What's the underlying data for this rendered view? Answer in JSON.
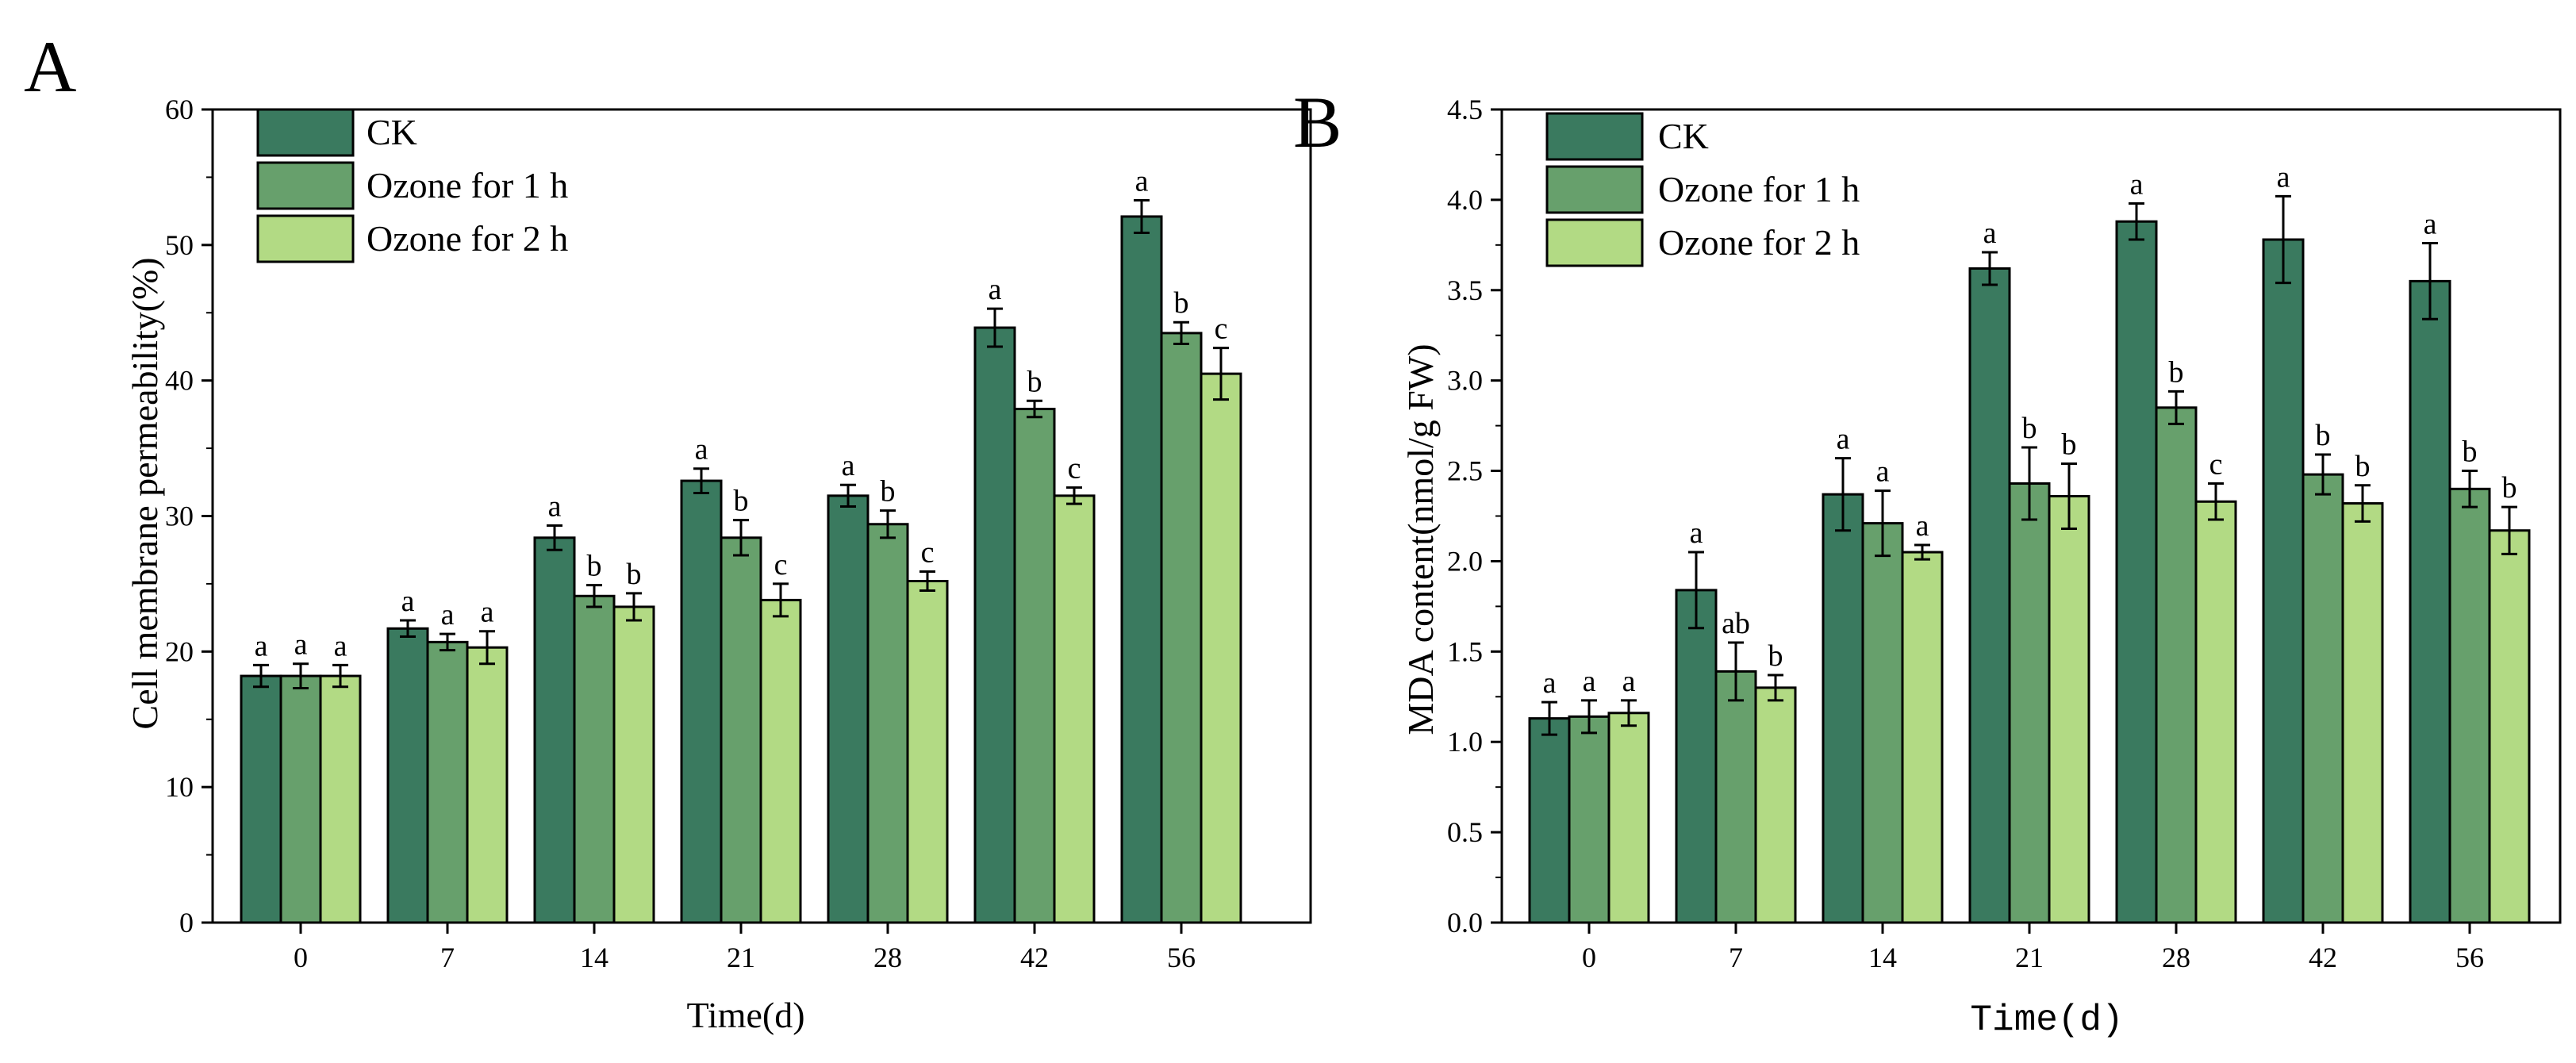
{
  "colors": {
    "ck": "#3a7a5f",
    "ozone1": "#67a06c",
    "ozone2": "#b2da84",
    "ink": "#000000"
  },
  "chart_data": [
    {
      "panel": "A",
      "type": "bar",
      "categories": [
        "0",
        "7",
        "14",
        "21",
        "28",
        "42",
        "56"
      ],
      "xlabel": "Time(d)",
      "ylabel": "Cell membrane permeability(%)",
      "ylim": [
        0,
        60
      ],
      "yticks": [
        "0",
        "10",
        "20",
        "30",
        "40",
        "50",
        "60"
      ],
      "legend_position": "top-left",
      "series": [
        {
          "name": "CK",
          "values": [
            18.2,
            21.7,
            28.4,
            32.6,
            31.5,
            43.9,
            52.1
          ],
          "errors": [
            0.8,
            0.6,
            0.9,
            0.9,
            0.8,
            1.4,
            1.2
          ],
          "labels": [
            "a",
            "a",
            "a",
            "a",
            "a",
            "a",
            "a"
          ]
        },
        {
          "name": "Ozone for 1 h",
          "values": [
            18.2,
            20.7,
            24.1,
            28.4,
            29.4,
            37.9,
            43.5
          ],
          "errors": [
            0.9,
            0.6,
            0.8,
            1.3,
            1.0,
            0.6,
            0.8
          ],
          "labels": [
            "a",
            "a",
            "b",
            "b",
            "b",
            "b",
            "b"
          ]
        },
        {
          "name": "Ozone for 2 h",
          "values": [
            18.2,
            20.3,
            23.3,
            23.8,
            25.2,
            31.5,
            40.5
          ],
          "errors": [
            0.8,
            1.2,
            1.0,
            1.2,
            0.7,
            0.6,
            1.9
          ],
          "labels": [
            "a",
            "a",
            "b",
            "c",
            "c",
            "c",
            "c"
          ]
        }
      ]
    },
    {
      "panel": "B",
      "type": "bar",
      "categories": [
        "0",
        "7",
        "14",
        "21",
        "28",
        "42",
        "56"
      ],
      "xlabel": "Time(d)",
      "ylabel": "MDA content(nmol/g FW)",
      "ylim": [
        0,
        4.5
      ],
      "yticks": [
        "0.0",
        "0.5",
        "1.0",
        "1.5",
        "2.0",
        "2.5",
        "3.0",
        "3.5",
        "4.0",
        "4.5"
      ],
      "legend_position": "top-left",
      "series": [
        {
          "name": "CK",
          "values": [
            1.13,
            1.84,
            2.37,
            3.62,
            3.88,
            3.78,
            3.55
          ],
          "errors": [
            0.09,
            0.21,
            0.2,
            0.09,
            0.1,
            0.24,
            0.21
          ],
          "labels": [
            "a",
            "a",
            "a",
            "a",
            "a",
            "a",
            "a"
          ]
        },
        {
          "name": "Ozone for 1 h",
          "values": [
            1.14,
            1.39,
            2.21,
            2.43,
            2.85,
            2.48,
            2.4
          ],
          "errors": [
            0.09,
            0.16,
            0.18,
            0.2,
            0.09,
            0.11,
            0.1
          ],
          "labels": [
            "a",
            "ab",
            "a",
            "b",
            "b",
            "b",
            "b"
          ]
        },
        {
          "name": "Ozone for 2 h",
          "values": [
            1.16,
            1.3,
            2.05,
            2.36,
            2.33,
            2.32,
            2.17
          ],
          "errors": [
            0.07,
            0.07,
            0.04,
            0.18,
            0.1,
            0.1,
            0.13
          ],
          "labels": [
            "a",
            "b",
            "a",
            "b",
            "c",
            "b",
            "b"
          ]
        }
      ]
    }
  ]
}
